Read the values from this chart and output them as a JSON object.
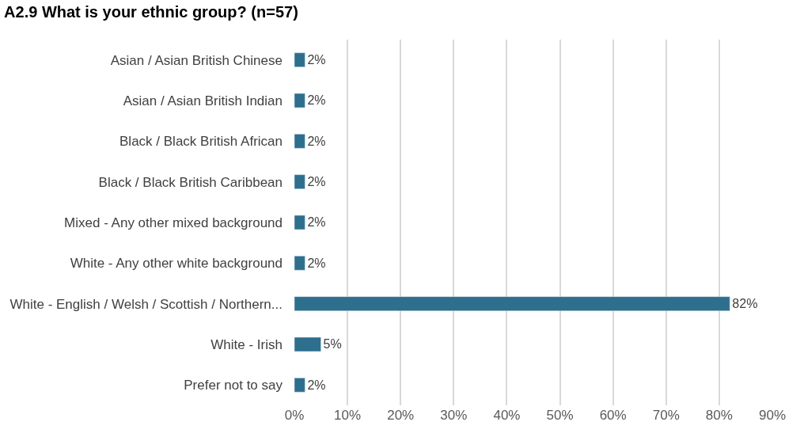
{
  "chart_data": {
    "type": "bar",
    "orientation": "horizontal",
    "title": "A2.9 What is your ethnic group? (n=57)",
    "categories": [
      "Asian / Asian British Chinese",
      "Asian / Asian British Indian",
      "Black / Black British African",
      "Black / Black British Caribbean",
      "Mixed - Any other mixed background",
      "White - Any other white background",
      "White - English / Welsh / Scottish / Northern...",
      "White - Irish",
      "Prefer not to say"
    ],
    "values": [
      2,
      2,
      2,
      2,
      2,
      2,
      82,
      5,
      2
    ],
    "value_labels": [
      "2%",
      "2%",
      "2%",
      "2%",
      "2%",
      "2%",
      "82%",
      "5%",
      "2%"
    ],
    "color": "#2e6f8e",
    "xlim": [
      0,
      90
    ],
    "xticks": [
      {
        "value": 0,
        "label": "0%"
      },
      {
        "value": 10,
        "label": "10%"
      },
      {
        "value": 20,
        "label": "20%"
      },
      {
        "value": 30,
        "label": "30%"
      },
      {
        "value": 40,
        "label": "40%"
      },
      {
        "value": 50,
        "label": "50%"
      },
      {
        "value": 60,
        "label": "60%"
      },
      {
        "value": 70,
        "label": "70%"
      },
      {
        "value": 80,
        "label": "80%"
      },
      {
        "value": 90,
        "label": "90%"
      }
    ],
    "grid": "x",
    "legend": false
  }
}
